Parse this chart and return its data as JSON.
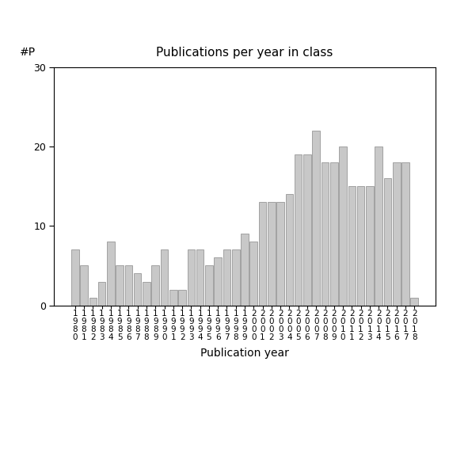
{
  "years": [
    "1980",
    "1981",
    "1982",
    "1983",
    "1984",
    "1985",
    "1986",
    "1987",
    "1988",
    "1989",
    "1990",
    "1991",
    "1992",
    "1993",
    "1994",
    "1995",
    "1996",
    "1997",
    "1998",
    "1999",
    "2000",
    "2001",
    "2002",
    "2003",
    "2004",
    "2005",
    "2006",
    "2007",
    "2008",
    "2009",
    "2010",
    "2011",
    "2012",
    "2013",
    "2014",
    "2015",
    "2016",
    "2017",
    "2018"
  ],
  "values": [
    7,
    5,
    1,
    3,
    8,
    5,
    5,
    4,
    3,
    5,
    7,
    2,
    2,
    7,
    7,
    5,
    6,
    7,
    7,
    9,
    8,
    13,
    13,
    13,
    14,
    19,
    19,
    22,
    18,
    18,
    20,
    15,
    15,
    15,
    20,
    16,
    18,
    18,
    1
  ],
  "title": "Publications per year in class",
  "xlabel": "Publication year",
  "ylabel": "#P",
  "ylim": [
    0,
    30
  ],
  "yticks": [
    0,
    10,
    20,
    30
  ],
  "bar_color": "#c8c8c8",
  "bar_edgecolor": "#888888",
  "bg_color": "#ffffff",
  "tick_label_fontsize": 7.5,
  "axis_label_fontsize": 10,
  "title_fontsize": 11
}
